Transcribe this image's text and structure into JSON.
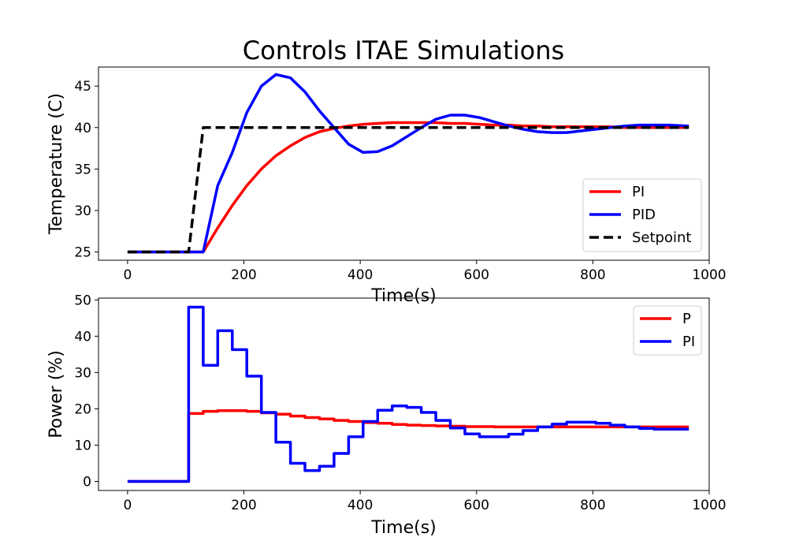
{
  "chart_data": [
    {
      "type": "line",
      "title": "Controls ITAE Simulations",
      "xlabel": "Time(s)",
      "ylabel": "Temperature (C)",
      "xlim": [
        -50,
        1000
      ],
      "ylim": [
        24,
        47.3
      ],
      "xticks": [
        0,
        200,
        400,
        600,
        800,
        1000
      ],
      "yticks": [
        25,
        30,
        35,
        40,
        45
      ],
      "legend_position": "lower right",
      "series": [
        {
          "name": "PI",
          "color": "#ff0000",
          "style": "solid",
          "x": [
            0,
            105,
            130,
            155,
            180,
            205,
            230,
            255,
            280,
            305,
            330,
            355,
            380,
            405,
            430,
            455,
            480,
            505,
            530,
            555,
            580,
            605,
            630,
            655,
            680,
            705,
            730,
            755,
            780,
            805,
            830,
            855,
            880,
            905,
            930,
            965
          ],
          "y": [
            25,
            25,
            25,
            27.9,
            30.6,
            33.0,
            35.0,
            36.6,
            37.8,
            38.8,
            39.5,
            39.9,
            40.2,
            40.4,
            40.5,
            40.6,
            40.6,
            40.6,
            40.6,
            40.5,
            40.5,
            40.4,
            40.3,
            40.3,
            40.2,
            40.2,
            40.1,
            40.1,
            40.1,
            40.1,
            40.1,
            40.0,
            40.0,
            40.0,
            40.0,
            40.0
          ]
        },
        {
          "name": "PID",
          "color": "#0000ff",
          "style": "solid",
          "x": [
            0,
            105,
            130,
            155,
            180,
            205,
            230,
            255,
            280,
            305,
            330,
            355,
            380,
            405,
            430,
            455,
            480,
            505,
            530,
            555,
            580,
            605,
            630,
            655,
            680,
            705,
            730,
            755,
            780,
            805,
            830,
            855,
            880,
            905,
            930,
            965
          ],
          "y": [
            25,
            25,
            25,
            33.0,
            37.0,
            41.8,
            45.0,
            46.4,
            46.0,
            44.3,
            42.0,
            40.0,
            38.0,
            37.0,
            37.1,
            37.8,
            38.9,
            40.0,
            41.0,
            41.5,
            41.5,
            41.2,
            40.7,
            40.2,
            39.8,
            39.5,
            39.4,
            39.4,
            39.6,
            39.8,
            40.0,
            40.2,
            40.3,
            40.3,
            40.3,
            40.2
          ]
        },
        {
          "name": "Setpoint",
          "color": "#000000",
          "style": "dashed",
          "x": [
            0,
            105,
            130,
            965
          ],
          "y": [
            25,
            25,
            40,
            40
          ]
        }
      ]
    },
    {
      "type": "line",
      "title": "",
      "xlabel": "Time(s)",
      "ylabel": "Power (%)",
      "xlim": [
        -50,
        1000
      ],
      "ylim": [
        -2.5,
        50.5
      ],
      "xticks": [
        0,
        200,
        400,
        600,
        800,
        1000
      ],
      "yticks": [
        0,
        10,
        20,
        30,
        40,
        50
      ],
      "legend_position": "upper right",
      "series": [
        {
          "name": "P",
          "color": "#ff0000",
          "style": "steps",
          "x": [
            0,
            105,
            130,
            155,
            180,
            205,
            230,
            255,
            280,
            305,
            330,
            355,
            380,
            405,
            430,
            455,
            480,
            505,
            530,
            555,
            580,
            605,
            630,
            655,
            680,
            705,
            730,
            755,
            780,
            805,
            830,
            855,
            880,
            905,
            930,
            965
          ],
          "y": [
            0,
            18.7,
            19.3,
            19.5,
            19.5,
            19.3,
            18.9,
            18.5,
            18.0,
            17.6,
            17.2,
            16.8,
            16.5,
            16.2,
            16.0,
            15.7,
            15.5,
            15.4,
            15.3,
            15.2,
            15.1,
            15.1,
            15.0,
            15.0,
            15.0,
            15.0,
            15.0,
            15.0,
            15.0,
            15.0,
            15.0,
            15.0,
            15.0,
            15.0,
            15.0,
            15.0
          ]
        },
        {
          "name": "PI",
          "color": "#0000ff",
          "style": "steps",
          "x": [
            0,
            105,
            130,
            155,
            180,
            205,
            230,
            255,
            280,
            305,
            330,
            355,
            380,
            405,
            430,
            455,
            480,
            505,
            530,
            555,
            580,
            605,
            630,
            655,
            680,
            705,
            730,
            755,
            780,
            805,
            830,
            855,
            880,
            905,
            930,
            965
          ],
          "y": [
            0,
            48,
            32,
            41.5,
            36.3,
            29,
            19,
            10.8,
            5,
            3,
            4.2,
            7.7,
            12.3,
            16.5,
            19.6,
            20.8,
            20.4,
            19,
            16.8,
            14.7,
            13.1,
            12.3,
            12.3,
            13,
            14,
            15,
            15.8,
            16.3,
            16.3,
            16,
            15.5,
            15.0,
            14.6,
            14.4,
            14.4,
            14.4
          ]
        }
      ]
    }
  ]
}
